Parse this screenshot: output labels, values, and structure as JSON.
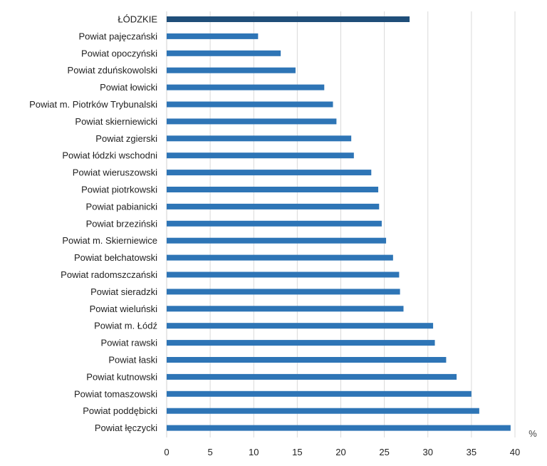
{
  "chart_data": {
    "type": "bar",
    "orientation": "horizontal",
    "categories": [
      "ŁÓDZKIE",
      "Powiat pajęczański",
      "Powiat opoczyński",
      "Powiat zduńskowolski",
      "Powiat łowicki",
      "Powiat m. Piotrków Trybunalski",
      "Powiat skierniewicki",
      "Powiat zgierski",
      "Powiat łódzki wschodni",
      "Powiat wieruszowski",
      "Powiat piotrkowski",
      "Powiat pabianicki",
      "Powiat brzeziński",
      "Powiat m. Skierniewice",
      "Powiat bełchatowski",
      "Powiat radomszczański",
      "Powiat sieradzki",
      "Powiat wieluński",
      "Powiat m. Łódź",
      "Powiat rawski",
      "Powiat łaski",
      "Powiat kutnowski",
      "Powiat tomaszowski",
      "Powiat poddębicki",
      "Powiat łęczycki"
    ],
    "values": [
      27.9,
      10.5,
      13.1,
      14.8,
      18.1,
      19.1,
      19.5,
      21.2,
      21.5,
      23.5,
      24.3,
      24.4,
      24.7,
      25.2,
      26.0,
      26.7,
      26.8,
      27.2,
      30.6,
      30.8,
      32.1,
      33.3,
      35.0,
      35.9,
      39.5
    ],
    "highlight": "ŁÓDZKIE",
    "colors": {
      "bar": "#2e75b6",
      "highlight_bar": "#1f4e79",
      "grid": "#d9d9d9"
    },
    "xlim": [
      0,
      40
    ],
    "xticks": [
      0,
      5,
      10,
      15,
      20,
      25,
      30,
      35,
      40
    ],
    "unit_label": "%",
    "grid": true,
    "legend": "none"
  }
}
